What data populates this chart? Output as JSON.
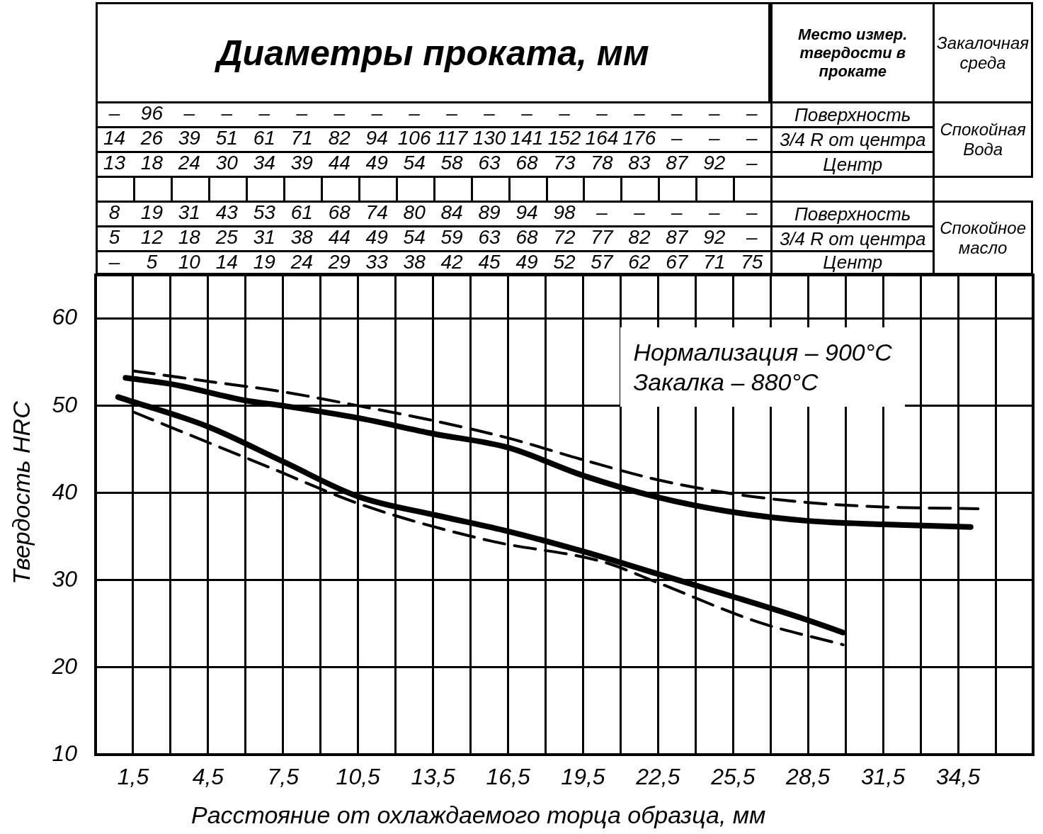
{
  "chart_data": {
    "type": "line",
    "title": "Диаметры проката, мм",
    "xlabel": "Расстояние от охлаждаемого торца образца, мм",
    "ylabel": "Твердость HRC",
    "annotations": [
      "Место измер. твердости в прокате",
      "Закалочная среда",
      "Спокойная Вода",
      "Спокойное масло",
      "– 96 – – – – – – – – – – – – – – – –",
      "Поверхность",
      "14 26 39 51 61 71 82 94 106 117 130 141 152 164 176 – – –",
      "3/4 R от центра",
      "13 18 24 30 34 39 44 49 54 58 63 68 73 78 83 87 92 –",
      "Центр",
      "8 19 31 43 53 61 68 74 80 84 89 94 98 – – – – –",
      "Поверхность",
      "5 12 18 25 31 38 44 49 54 59 63 68 72 77 82 87 92 –",
      "3/4 R от центра",
      "– 5 10 14 19 24 29 33 38 42 45 49 52 57 62 67 71 75",
      "Центр",
      "Нормализация – 900°C",
      "Закалка – 880°C"
    ],
    "series": [
      {
        "color": "#000000",
        "line_style": "solid",
        "x": [
          1.2,
          3,
          6,
          7.5,
          10.5,
          13.5,
          16.5,
          19.5,
          22.5,
          25.5,
          28.5,
          31.5,
          35
        ],
        "values": [
          53.2,
          52.5,
          50.6,
          50,
          48.6,
          46.8,
          45.2,
          42,
          39.5,
          37.8,
          36.8,
          36.4,
          36.1
        ]
      },
      {
        "color": "#000000",
        "line_style": "dashed",
        "x": [
          1.5,
          4.5,
          7.5,
          10.5,
          13.5,
          16.5,
          19.5,
          22.5,
          25.5,
          28.5,
          31.5,
          35.3
        ],
        "values": [
          54,
          52.8,
          51.6,
          50,
          48.3,
          46.3,
          43.8,
          41.5,
          39.9,
          38.9,
          38.4,
          38.2
        ]
      },
      {
        "color": "#000000",
        "line_style": "solid",
        "x": [
          0.9,
          4.5,
          7.5,
          10.5,
          13.7,
          16.5,
          19.5,
          22.5,
          25.4,
          28.3,
          29.9
        ],
        "values": [
          51,
          47.6,
          43.6,
          39.6,
          37.4,
          35.6,
          33.3,
          30.7,
          28.2,
          25.6,
          24
        ]
      },
      {
        "color": "#000000",
        "line_style": "dashed",
        "x": [
          1.5,
          6.9,
          10.7,
          15.8,
          20.3,
          22.5,
          26.5,
          29.9
        ],
        "values": [
          49.3,
          43,
          38.6,
          34.5,
          32.1,
          29.7,
          25.2,
          22.6
        ]
      }
    ],
    "xlim": [
      0,
      37.5
    ],
    "ylim": [
      10,
      65
    ],
    "xticks": [
      {
        "value": 0,
        "label": null
      },
      {
        "value": 1.5,
        "label": "1,5"
      },
      {
        "value": 3,
        "label": null
      },
      {
        "value": 4.5,
        "label": "4,5"
      },
      {
        "value": 6,
        "label": null
      },
      {
        "value": 7.5,
        "label": "7,5"
      },
      {
        "value": 9,
        "label": null
      },
      {
        "value": 10.5,
        "label": "10,5"
      },
      {
        "value": 12,
        "label": null
      },
      {
        "value": 13.5,
        "label": "13,5"
      },
      {
        "value": 15,
        "label": null
      },
      {
        "value": 16.5,
        "label": "16,5"
      },
      {
        "value": 18,
        "label": null
      },
      {
        "value": 19.5,
        "label": "19,5"
      },
      {
        "value": 21,
        "label": null
      },
      {
        "value": 22.5,
        "label": "22,5"
      },
      {
        "value": 24,
        "label": null
      },
      {
        "value": 25.5,
        "label": "25,5"
      },
      {
        "value": 27,
        "label": null
      },
      {
        "value": 28.5,
        "label": "28,5"
      },
      {
        "value": 30,
        "label": null
      },
      {
        "value": 31.5,
        "label": "31,5"
      },
      {
        "value": 33,
        "label": null
      },
      {
        "value": 34.5,
        "label": "34,5"
      },
      {
        "value": 36,
        "label": null
      },
      {
        "value": 37.5,
        "label": null
      }
    ],
    "yticks": [
      10,
      20,
      30,
      40,
      50,
      60,
      {
        "value": 65,
        "label": null
      }
    ],
    "grid": true,
    "marker": "none"
  }
}
